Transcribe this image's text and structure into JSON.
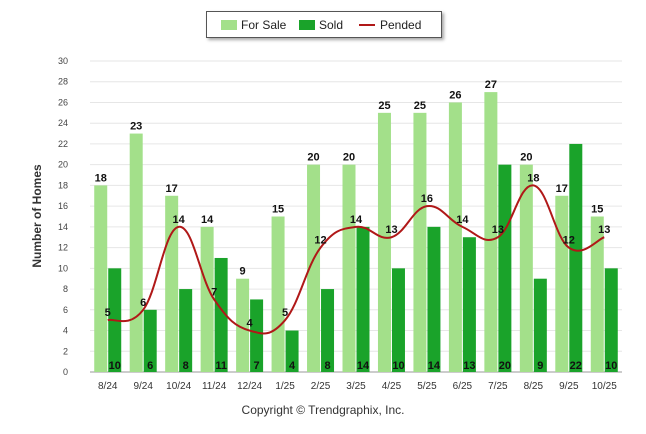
{
  "chart_data": {
    "type": "bar",
    "categories": [
      "8/24",
      "9/24",
      "10/24",
      "11/24",
      "12/24",
      "1/25",
      "2/25",
      "3/25",
      "4/25",
      "5/25",
      "6/25",
      "7/25",
      "8/25",
      "9/25",
      "10/25"
    ],
    "series": [
      {
        "name": "For Sale",
        "type": "bar",
        "values": [
          18,
          23,
          17,
          14,
          9,
          15,
          20,
          20,
          25,
          25,
          26,
          27,
          20,
          17,
          15
        ]
      },
      {
        "name": "Sold",
        "type": "bar",
        "values": [
          10,
          6,
          8,
          11,
          7,
          4,
          8,
          14,
          10,
          14,
          13,
          20,
          9,
          22,
          10
        ]
      },
      {
        "name": "Pended",
        "type": "line",
        "values": [
          5,
          6,
          14,
          7,
          4,
          5,
          12,
          14,
          13,
          16,
          14,
          13,
          18,
          12,
          13
        ]
      }
    ],
    "ylabel": "Number of Homes",
    "xlabel": "",
    "ylim": [
      0,
      30
    ],
    "yticks": [
      0,
      2,
      4,
      6,
      8,
      10,
      12,
      14,
      16,
      18,
      20,
      22,
      24,
      26,
      28,
      30
    ],
    "grid": true,
    "legend_position": "top-center",
    "colors": {
      "for_sale": "#a3e08a",
      "sold": "#1aa32a",
      "pended": "#b01818"
    }
  },
  "legend": {
    "for_sale": "For Sale",
    "sold": "Sold",
    "pended": "Pended"
  },
  "footer": {
    "copyright": "Copyright © Trendgraphix, Inc."
  }
}
